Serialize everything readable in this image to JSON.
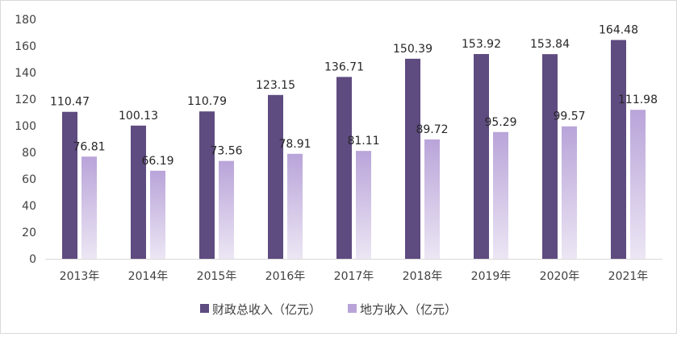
{
  "chart_data": {
    "type": "bar",
    "categories": [
      "2013年",
      "2014年",
      "2015年",
      "2016年",
      "2017年",
      "2018年",
      "2019年",
      "2020年",
      "2021年"
    ],
    "series": [
      {
        "name": "财政总收入（亿元）",
        "values": [
          110.47,
          100.13,
          110.79,
          123.15,
          136.71,
          150.39,
          153.92,
          153.84,
          164.48
        ],
        "color": "#5e4b80"
      },
      {
        "name": "地方收入（亿元）",
        "values": [
          76.81,
          66.19,
          73.56,
          78.91,
          81.11,
          89.72,
          95.29,
          99.57,
          111.98
        ],
        "color_top": "#b9a4d9",
        "color_bottom": "#ece6f4"
      }
    ],
    "ylim": [
      0,
      180
    ],
    "yticks": [
      0,
      20,
      40,
      60,
      80,
      100,
      120,
      140,
      160,
      180
    ],
    "grid": false,
    "legend_position": "bottom"
  }
}
